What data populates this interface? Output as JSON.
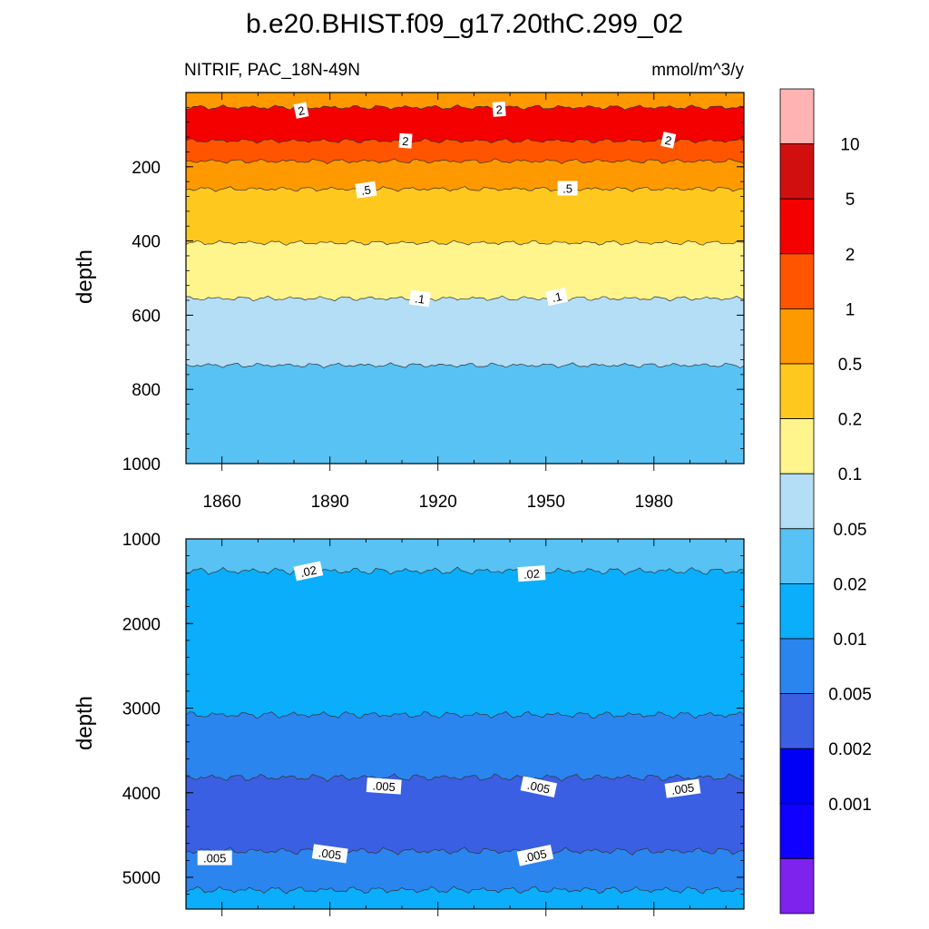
{
  "title": "b.e20.BHIST.f09_g17.20thC.299_02",
  "left_subtitle": "NITRIF, PAC_18N-49N",
  "right_subtitle": "mmol/m^3/y",
  "chart_data": [
    {
      "type": "heatmap",
      "panel": "upper",
      "xlabel": "",
      "ylabel": "depth",
      "x_ticks": [
        "1860",
        "1890",
        "1920",
        "1950",
        "1980"
      ],
      "y_ticks": [
        "200",
        "400",
        "600",
        "800",
        "1000"
      ],
      "xlim": [
        1850,
        2005
      ],
      "ylim": [
        1000,
        0
      ],
      "y_reversed": true,
      "bands": [
        {
          "from_depth": 0,
          "to_depth": 40,
          "fill": "#FF9900"
        },
        {
          "from_depth": 40,
          "to_depth": 130,
          "fill": "#F50000"
        },
        {
          "from_depth": 130,
          "to_depth": 185,
          "fill": "#FF5500"
        },
        {
          "from_depth": 185,
          "to_depth": 260,
          "fill": "#FF9900"
        },
        {
          "from_depth": 260,
          "to_depth": 405,
          "fill": "#FFC81E"
        },
        {
          "from_depth": 405,
          "to_depth": 555,
          "fill": "#FFF58C"
        },
        {
          "from_depth": 555,
          "to_depth": 735,
          "fill": "#B3DEF5"
        },
        {
          "from_depth": 735,
          "to_depth": 1000,
          "fill": "#57C2F3"
        }
      ],
      "contour_labels": [
        {
          "text": "2",
          "year": 1882,
          "depth": 48
        },
        {
          "text": "2",
          "year": 1937,
          "depth": 45
        },
        {
          "text": "2",
          "year": 1911,
          "depth": 130
        },
        {
          "text": "2",
          "year": 1984,
          "depth": 128
        },
        {
          "text": ".5",
          "year": 1900,
          "depth": 262
        },
        {
          "text": ".5",
          "year": 1956,
          "depth": 258
        },
        {
          "text": ".1",
          "year": 1915,
          "depth": 555
        },
        {
          "text": ".1",
          "year": 1953,
          "depth": 550
        }
      ]
    },
    {
      "type": "heatmap",
      "panel": "lower",
      "xlabel": "",
      "ylabel": "depth",
      "y_ticks": [
        "1000",
        "2000",
        "3000",
        "4000",
        "5000"
      ],
      "xlim": [
        1850,
        2005
      ],
      "ylim": [
        5375,
        1000
      ],
      "y_reversed": true,
      "bands": [
        {
          "from_depth": 1000,
          "to_depth": 1380,
          "fill": "#57C2F3"
        },
        {
          "from_depth": 1380,
          "to_depth": 3080,
          "fill": "#0AAEFA"
        },
        {
          "from_depth": 3080,
          "to_depth": 3820,
          "fill": "#2A85EF"
        },
        {
          "from_depth": 3820,
          "to_depth": 4690,
          "fill": "#3B5FE2"
        },
        {
          "from_depth": 4690,
          "to_depth": 5150,
          "fill": "#2A85EF"
        },
        {
          "from_depth": 5150,
          "to_depth": 5375,
          "fill": "#0AAEFA"
        }
      ],
      "contour_labels": [
        {
          "text": ".02",
          "year": 1884,
          "depth": 1380
        },
        {
          "text": ".02",
          "year": 1946,
          "depth": 1410
        },
        {
          "text": ".005",
          "year": 1905,
          "depth": 3920
        },
        {
          "text": ".005",
          "year": 1948,
          "depth": 3930
        },
        {
          "text": ".005",
          "year": 1988,
          "depth": 3950
        },
        {
          "text": ".005",
          "year": 1858,
          "depth": 4770
        },
        {
          "text": ".005",
          "year": 1890,
          "depth": 4720
        },
        {
          "text": ".005",
          "year": 1947,
          "depth": 4740
        }
      ]
    }
  ],
  "colorbar": {
    "colors": [
      "#FFB3B3",
      "#D10F0F",
      "#F50000",
      "#FF5500",
      "#FF9900",
      "#FFC81E",
      "#FFF58C",
      "#B3DEF5",
      "#57C2F3",
      "#0AAEFA",
      "#2A85EF",
      "#3B5FE2",
      "#0000F5",
      "#0F00FF",
      "#7E22EE"
    ],
    "labels": [
      "10",
      "5",
      "2",
      "1",
      "0.5",
      "0.2",
      "0.1",
      "0.05",
      "0.02",
      "0.01",
      "0.005",
      "0.002",
      "0.001"
    ]
  }
}
